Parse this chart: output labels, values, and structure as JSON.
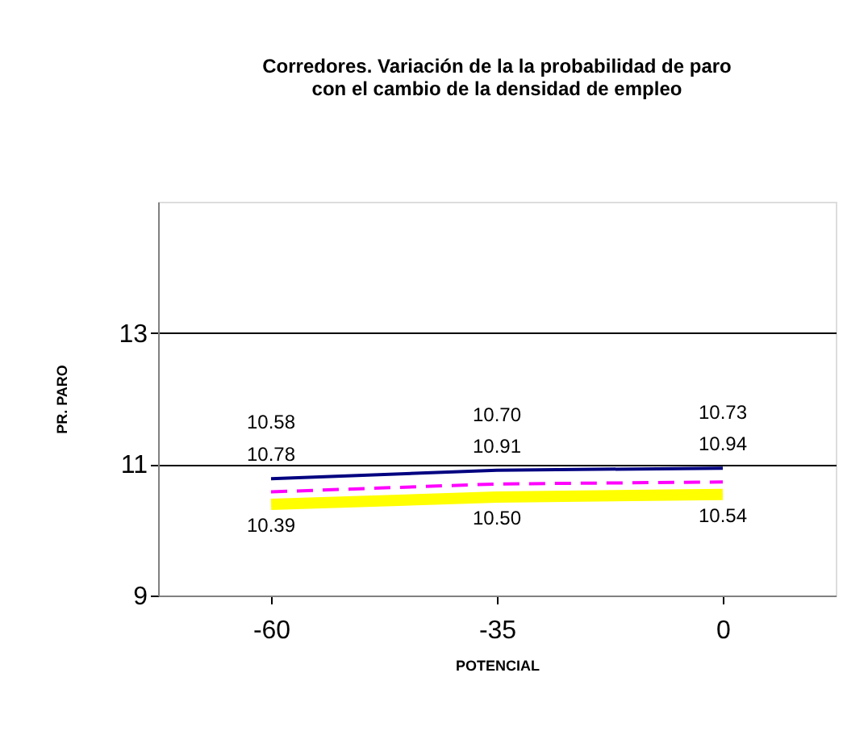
{
  "chart_data": {
    "type": "line",
    "title": [
      "Corredores. Variación de la la probabilidad de paro",
      "con el  cambio de la densidad de empleo"
    ],
    "xlabel": "POTENCIAL",
    "ylabel": "PR. PARO",
    "categories": [
      "-60",
      "-35",
      "0"
    ],
    "series": [
      {
        "color": "#000080",
        "values": [
          10.78,
          10.91,
          10.94
        ],
        "line_style": "solid",
        "value_labels": [
          "10.78",
          "10.91",
          "10.94"
        ]
      },
      {
        "color": "#ff00ff",
        "values": [
          10.58,
          10.7,
          10.73
        ],
        "line_style": "dashed",
        "value_labels": [
          "10.58",
          "10.70",
          "10.73"
        ]
      },
      {
        "color": "#ffff00",
        "values": [
          10.39,
          10.5,
          10.54
        ],
        "line_style": "solid",
        "value_labels": [
          "10.39",
          "10.50",
          "10.54"
        ]
      }
    ],
    "ylim": [
      9,
      15
    ],
    "yticks": [
      9,
      11,
      13
    ],
    "grid": "y",
    "marker": "none",
    "legend": false
  }
}
